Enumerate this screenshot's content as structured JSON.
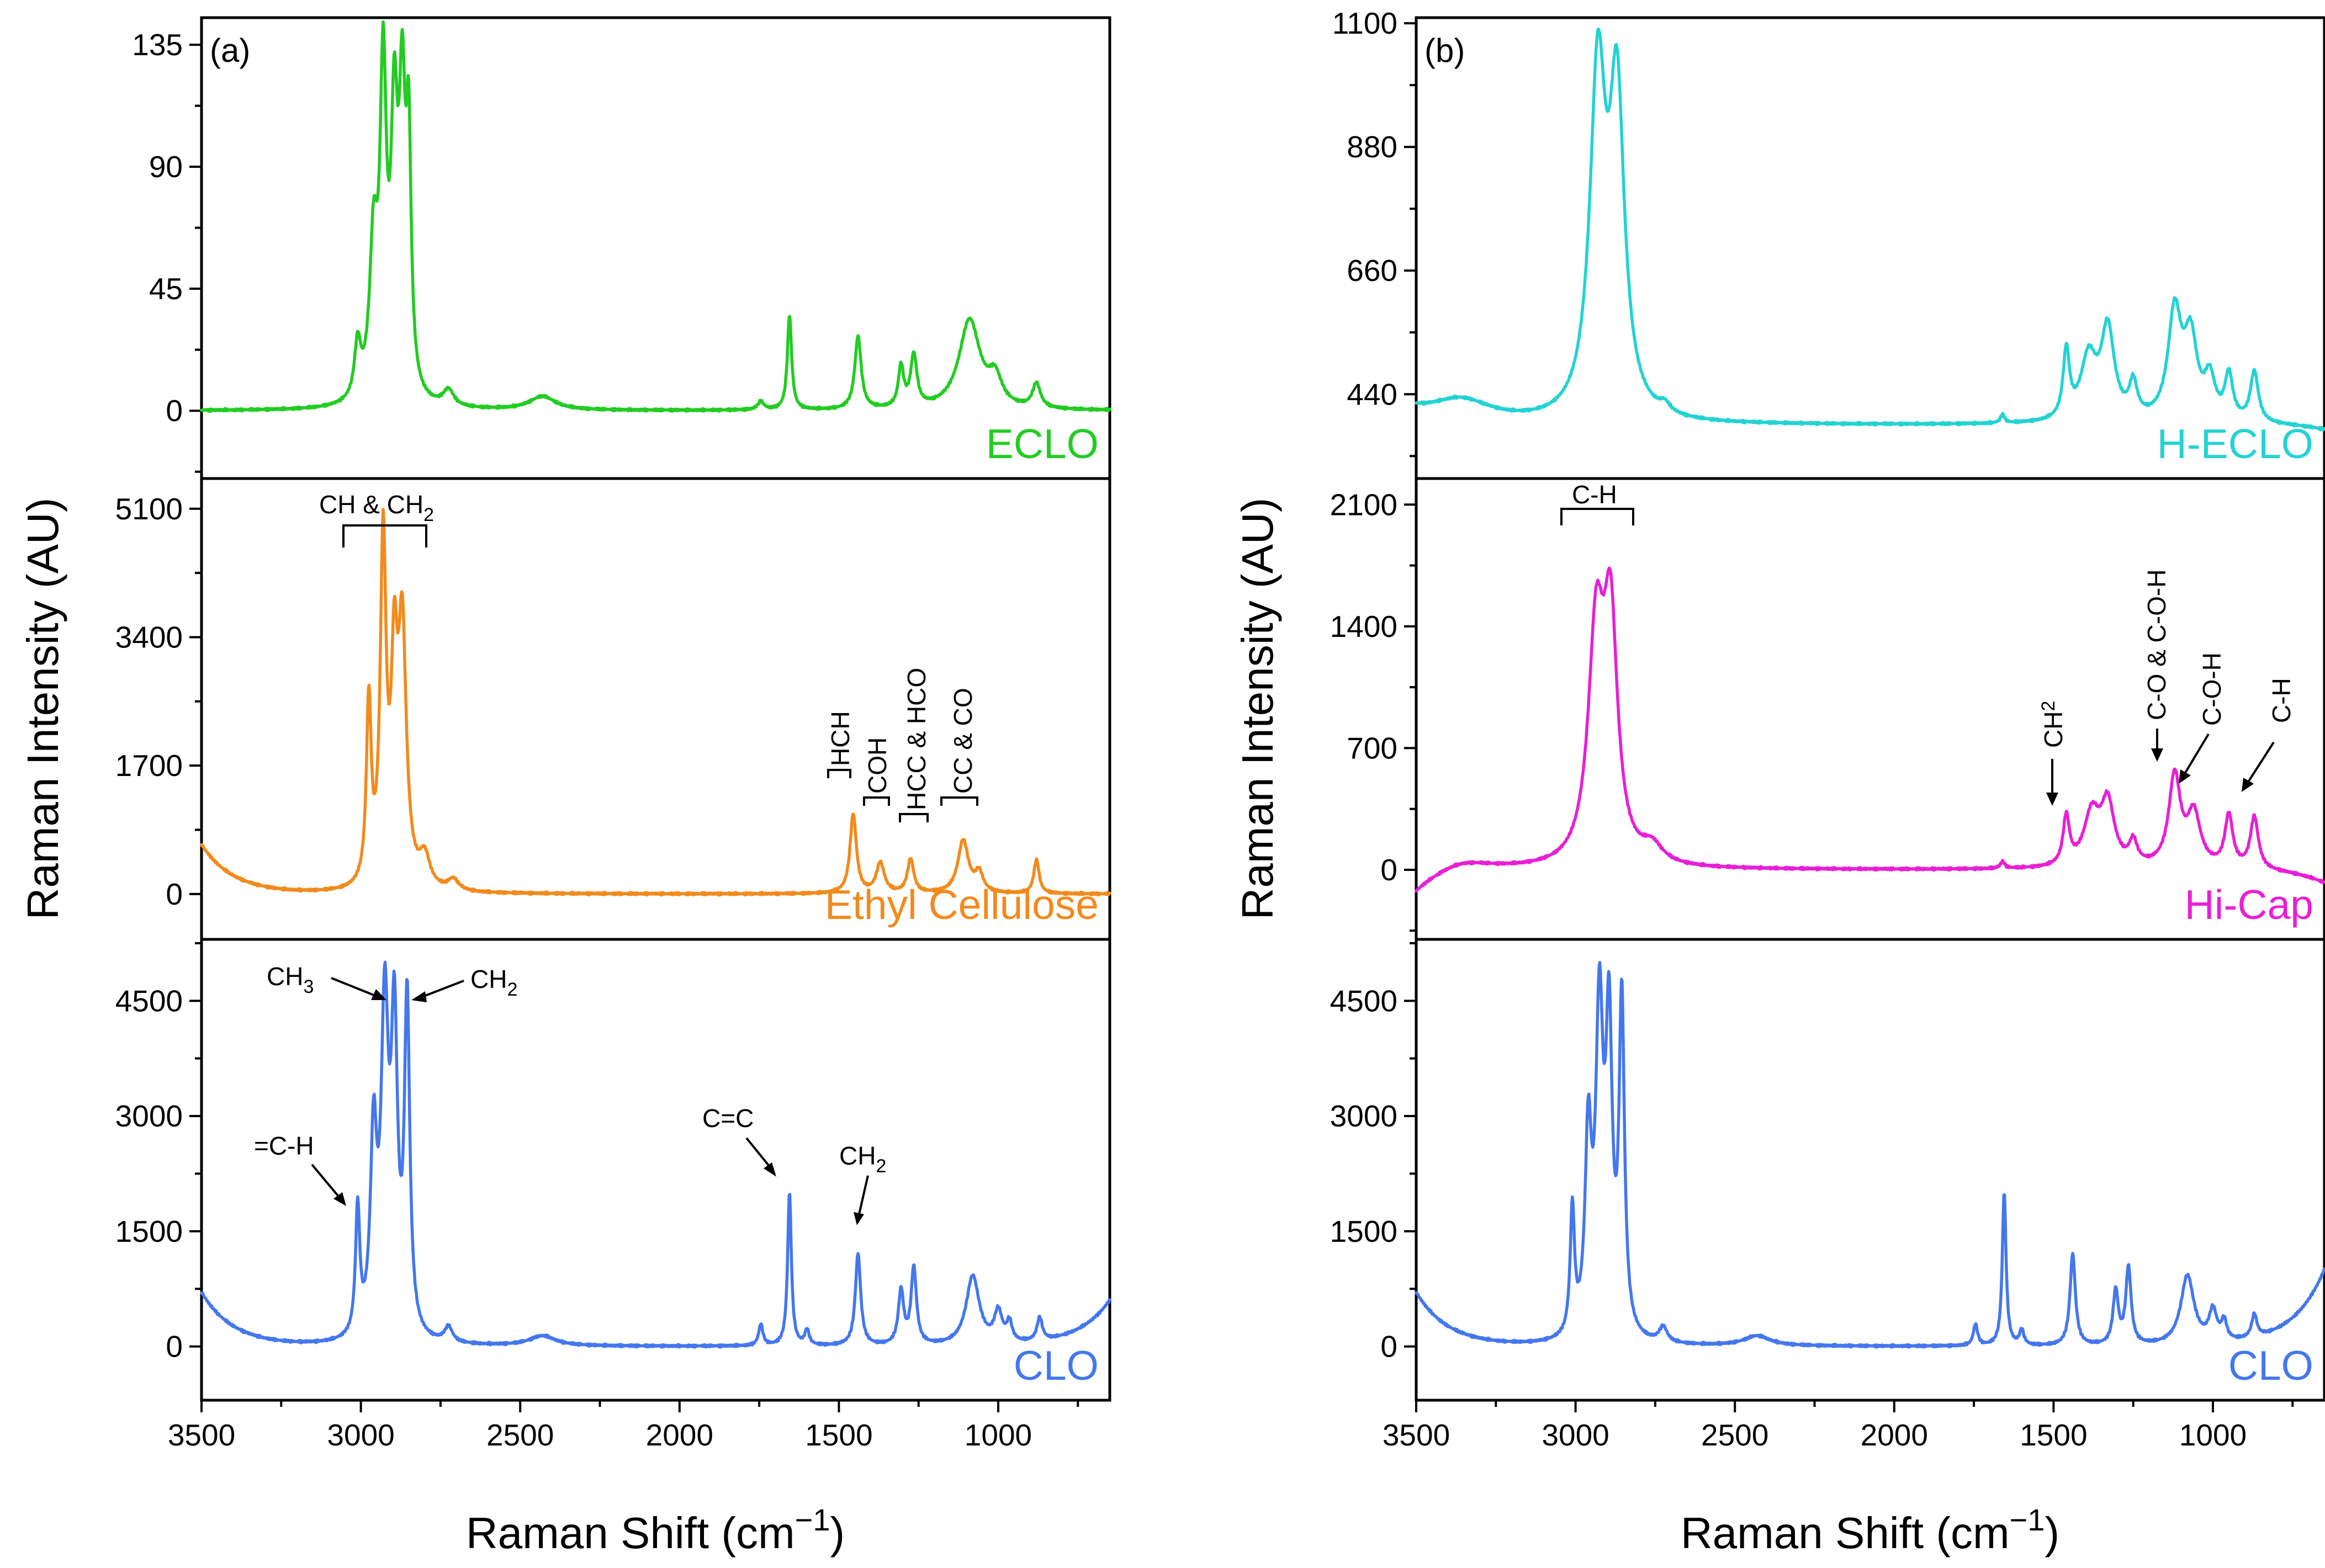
{
  "chart_data": {
    "type": "line",
    "x_label": "Raman Shift (cm",
    "x_label_sup": "−1",
    "x_label_end": ")",
    "y_label": "Raman Intensity (AU)",
    "x_range": [
      3500,
      650
    ],
    "x_ticks": [
      "3500",
      "3000",
      "2500",
      "2000",
      "1500",
      "1000"
    ],
    "x_tick_values": [
      3500,
      3000,
      2500,
      2000,
      1500,
      1000
    ],
    "colors": {
      "ECLO": "#22cc22",
      "EthylCellulose": "#f28a1c",
      "CLO": "#4477ee",
      "HECLO": "#22d3d3",
      "HiCap": "#e81fd6"
    },
    "panels": [
      {
        "letter": "(a)",
        "subplots": [
          {
            "label": "ECLO",
            "color_key": "ECLO",
            "ylim": [
              -25,
              145
            ],
            "y_ticks": [
              "135",
              "90",
              "45",
              "0"
            ],
            "y_tick_values": [
              135,
              90,
              45,
              0
            ],
            "baseline": 0,
            "peaks": [
              [
                3010,
                20,
                12
              ],
              [
                2960,
                55,
                15
              ],
              [
                2930,
                115,
                12
              ],
              [
                2895,
                95,
                13
              ],
              [
                2870,
                100,
                12
              ],
              [
                2850,
                85,
                9
              ],
              [
                2725,
                6,
                20
              ],
              [
                2430,
                5,
                50
              ],
              [
                1745,
                3,
                12
              ],
              [
                1655,
                35,
                8
              ],
              [
                1440,
                27,
                12
              ],
              [
                1305,
                15,
                10
              ],
              [
                1265,
                19,
                12
              ],
              [
                1090,
                33,
                40
              ],
              [
                1010,
                10,
                25
              ],
              [
                880,
                9,
                15
              ]
            ]
          },
          {
            "label": "Ethyl Cellulose",
            "color_key": "EthylCellulose",
            "ylim": [
              -600,
              5500
            ],
            "y_ticks": [
              "5100",
              "3400",
              "1700",
              "0"
            ],
            "y_tick_values": [
              5100,
              3400,
              1700,
              0
            ],
            "baseline": 0,
            "edge_left": 650,
            "peaks": [
              [
                2975,
                2400,
                9
              ],
              [
                2930,
                4500,
                11
              ],
              [
                2895,
                2600,
                12
              ],
              [
                2870,
                3300,
                15
              ],
              [
                2800,
                400,
                20
              ],
              [
                2710,
                150,
                20
              ],
              [
                1455,
                1050,
                12
              ],
              [
                1370,
                400,
                15
              ],
              [
                1275,
                450,
                12
              ],
              [
                1110,
                700,
                20
              ],
              [
                1060,
                250,
                15
              ],
              [
                880,
                450,
                10
              ]
            ]
          },
          {
            "label": "CLO",
            "color_key": "CLO",
            "ylim": [
              -700,
              5300
            ],
            "y_ticks": [
              "4500",
              "3000",
              "1500",
              "0"
            ],
            "y_tick_values": [
              4500,
              3000,
              1500,
              0
            ],
            "baseline": 0,
            "edge_left": 700,
            "edge_right": 600,
            "peaks": [
              [
                3010,
                1650,
                8
              ],
              [
                2960,
                2500,
                12
              ],
              [
                2925,
                4100,
                14
              ],
              [
                2895,
                3800,
                12
              ],
              [
                2855,
                4300,
                10
              ],
              [
                2725,
                200,
                15
              ],
              [
                2430,
                130,
                50
              ],
              [
                1745,
                280,
                8
              ],
              [
                1655,
                2000,
                7
              ],
              [
                1600,
                200,
                8
              ],
              [
                1440,
                1200,
                10
              ],
              [
                1305,
                700,
                10
              ],
              [
                1265,
                1000,
                10
              ],
              [
                1080,
                900,
                25
              ],
              [
                1000,
                400,
                15
              ],
              [
                965,
                250,
                10
              ],
              [
                870,
                300,
                10
              ]
            ]
          }
        ]
      },
      {
        "letter": "(b)",
        "subplots": [
          {
            "label": "H-ECLO",
            "color_key": "HECLO",
            "ylim": [
              290,
              1110
            ],
            "y_ticks": [
              "1100",
              "880",
              "660",
              "440"
            ],
            "y_tick_values": [
              1100,
              880,
              660,
              440
            ],
            "baseline": 385,
            "edge_left": 20,
            "edge_right": -10,
            "peaks": [
              [
                3360,
                40,
                120
              ],
              [
                2930,
                600,
                30
              ],
              [
                2870,
                550,
                28
              ],
              [
                2720,
                15,
                20
              ],
              [
                1660,
                15,
                8
              ],
              [
                1460,
                120,
                12
              ],
              [
                1390,
                110,
                30
              ],
              [
                1330,
                160,
                25
              ],
              [
                1250,
                60,
                15
              ],
              [
                1120,
                190,
                25
              ],
              [
                1070,
                140,
                25
              ],
              [
                1010,
                70,
                20
              ],
              [
                950,
                80,
                15
              ],
              [
                870,
                90,
                15
              ]
            ]
          },
          {
            "label": "Hi-Cap",
            "color_key": "HiCap",
            "ylim": [
              -400,
              2250
            ],
            "y_ticks": [
              "2100",
              "1400",
              "700",
              "0"
            ],
            "y_tick_values": [
              2100,
              1400,
              700,
              0
            ],
            "baseline": 0,
            "edge_left": -150,
            "edge_right": -80,
            "peaks": [
              [
                3360,
                60,
                110
              ],
              [
                2935,
                1300,
                30
              ],
              [
                2890,
                1300,
                26
              ],
              [
                2760,
                100,
                40
              ],
              [
                1660,
                40,
                8
              ],
              [
                1460,
                280,
                12
              ],
              [
                1380,
                300,
                30
              ],
              [
                1330,
                350,
                25
              ],
              [
                1250,
                130,
                15
              ],
              [
                1120,
                520,
                22
              ],
              [
                1060,
                300,
                25
              ],
              [
                950,
                300,
                15
              ],
              [
                870,
                300,
                15
              ]
            ]
          },
          {
            "label": "CLO",
            "color_key": "CLO",
            "ylim": [
              -700,
              5300
            ],
            "y_ticks": [
              "4500",
              "3000",
              "1500",
              "0"
            ],
            "y_tick_values": [
              4500,
              3000,
              1500,
              0
            ],
            "baseline": 0,
            "edge_left": 700,
            "edge_right": 1000,
            "peaks": [
              [
                3010,
                1650,
                8
              ],
              [
                2960,
                2500,
                12
              ],
              [
                2925,
                4100,
                14
              ],
              [
                2895,
                3800,
                12
              ],
              [
                2855,
                4300,
                10
              ],
              [
                2725,
                200,
                15
              ],
              [
                2430,
                130,
                50
              ],
              [
                1745,
                280,
                8
              ],
              [
                1655,
                2000,
                7
              ],
              [
                1600,
                200,
                8
              ],
              [
                1440,
                1200,
                10
              ],
              [
                1305,
                700,
                10
              ],
              [
                1265,
                1000,
                10
              ],
              [
                1080,
                900,
                25
              ],
              [
                1000,
                400,
                15
              ],
              [
                965,
                250,
                10
              ],
              [
                870,
                300,
                10
              ]
            ]
          }
        ]
      }
    ],
    "annotations": {
      "ch_ch2_main": "CH & CH",
      "ch_ch2_sub": "2",
      "hch": "HCH",
      "coh": "COH",
      "hcc_hco": "HCC & HCO",
      "cc_co": "CC & CO",
      "ch3_main": "CH",
      "ch3_sub": "3",
      "ch2_main": "CH",
      "ch2_sub": "2",
      "eq_ch": "=C-H",
      "cc_double": "C=C",
      "ch2b_main": "CH",
      "ch2b_sub": "2",
      "c_h_top": "C-H",
      "hicap_ch2_main": "CH",
      "hicap_ch2_sub": "2",
      "co_coh": "C-O & C-O-H",
      "coh2": "C-O-H",
      "ch_end": "C-H"
    }
  }
}
